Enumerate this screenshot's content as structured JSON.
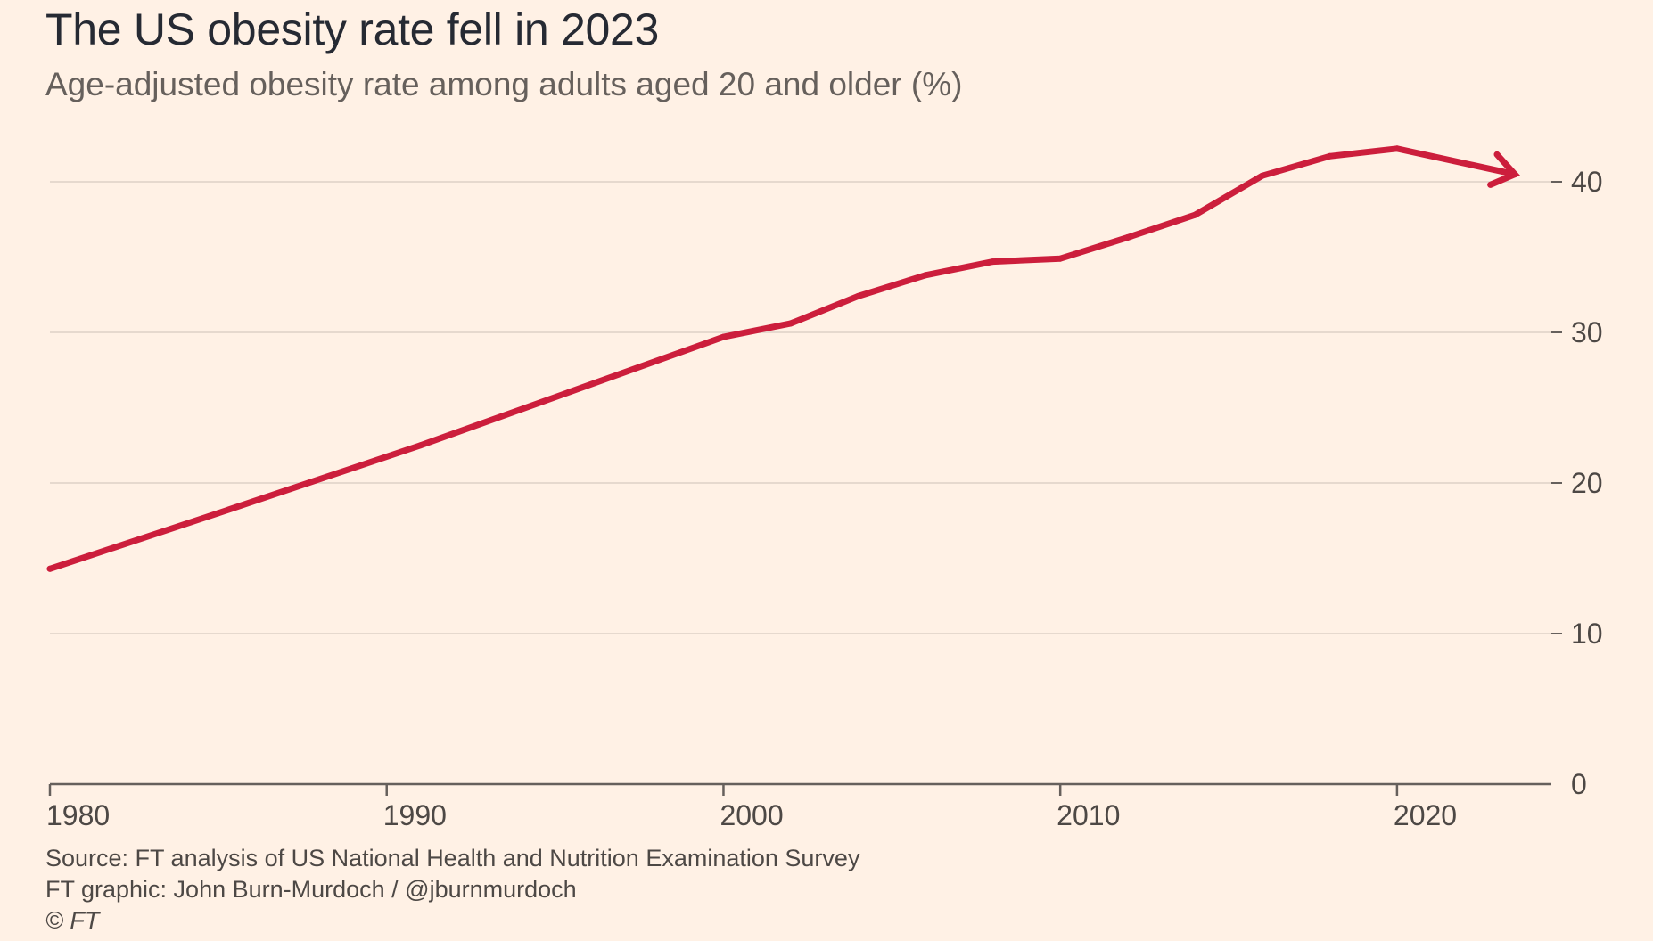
{
  "title": "The US obesity rate fell in 2023",
  "subtitle": "Age-adjusted obesity rate among adults aged 20 and older (%)",
  "footer": {
    "source": "Source: FT analysis of US National Health and Nutrition Examination Survey",
    "credit": "FT graphic: John Burn-Murdoch / @jburnmurdoch",
    "copyright": "© FT"
  },
  "colors": {
    "background": "#fff1e5",
    "line": "#cc1e3c",
    "grid": "#e6d9ce",
    "axis": "#66605c"
  },
  "chart_data": {
    "type": "line",
    "title": "The US obesity rate fell in 2023",
    "subtitle": "Age-adjusted obesity rate among adults aged 20 and older (%)",
    "xlabel": "",
    "ylabel": "",
    "xlim": [
      1980,
      2024.9
    ],
    "ylim": [
      0,
      42
    ],
    "x_ticks": [
      1980,
      1990,
      2000,
      2010,
      2020
    ],
    "y_ticks": [
      0,
      10,
      20,
      30,
      40
    ],
    "y_axis_position": "right",
    "grid": "horizontal",
    "line_end": "arrow",
    "series": [
      {
        "name": "",
        "x": [
          1980,
          1985,
          1991,
          2000,
          2002,
          2004,
          2006,
          2008,
          2010,
          2012,
          2014,
          2016,
          2018,
          2020,
          2023.5
        ],
        "y": [
          14.3,
          18.0,
          22.5,
          29.7,
          30.6,
          32.4,
          33.8,
          34.7,
          34.9,
          36.3,
          37.8,
          40.4,
          41.7,
          42.2,
          40.5
        ]
      }
    ]
  }
}
